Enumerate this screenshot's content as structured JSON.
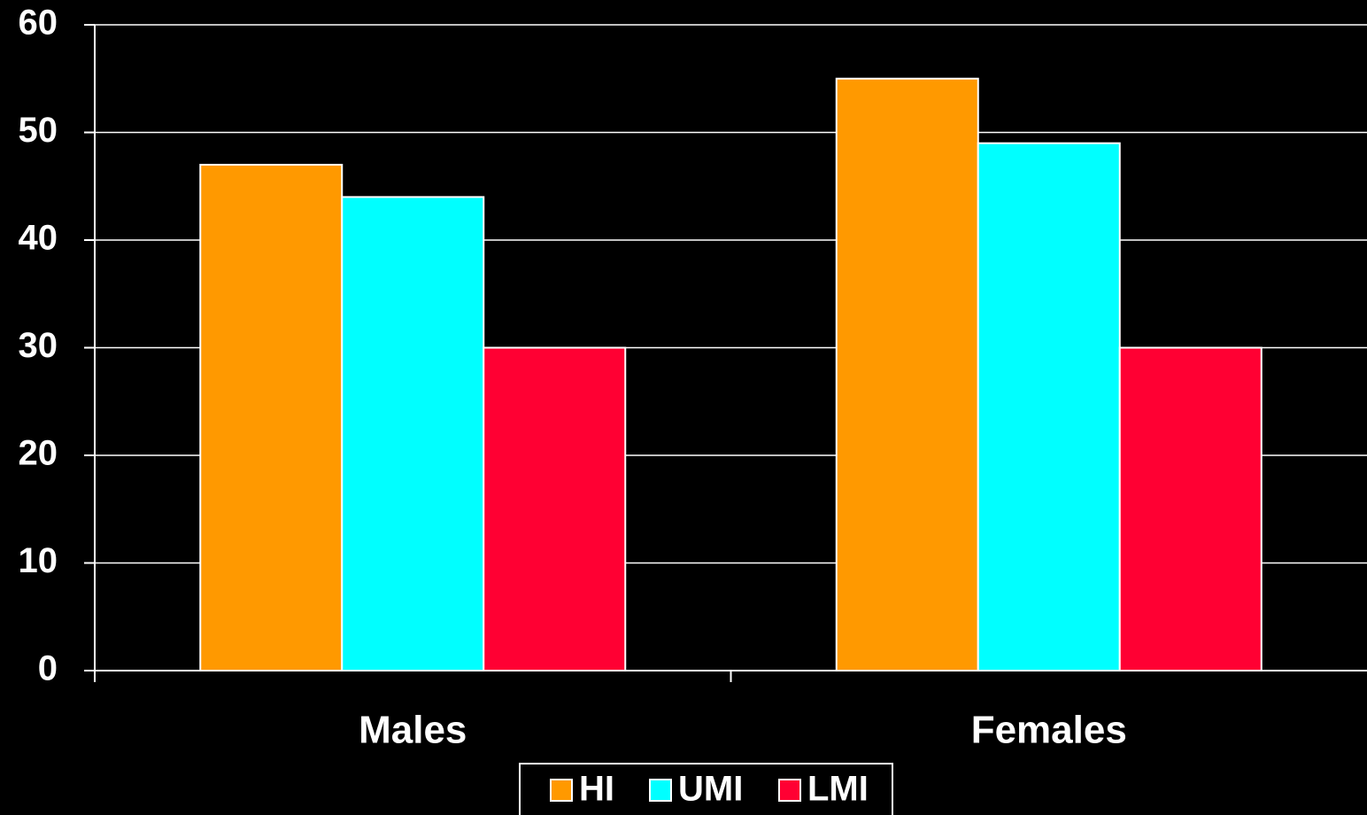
{
  "chart_data": {
    "type": "bar",
    "categories": [
      "Males",
      "Females"
    ],
    "series": [
      {
        "name": "HI",
        "color": "#ff9900",
        "values": [
          47,
          55
        ]
      },
      {
        "name": "UMI",
        "color": "#00ffff",
        "values": [
          44,
          49
        ]
      },
      {
        "name": "LMI",
        "color": "#ff0033",
        "values": [
          30,
          30
        ]
      }
    ],
    "ylim": [
      0,
      60
    ],
    "yticks": [
      0,
      10,
      20,
      30,
      40,
      50,
      60
    ],
    "grid": true,
    "legend": "bottom"
  }
}
